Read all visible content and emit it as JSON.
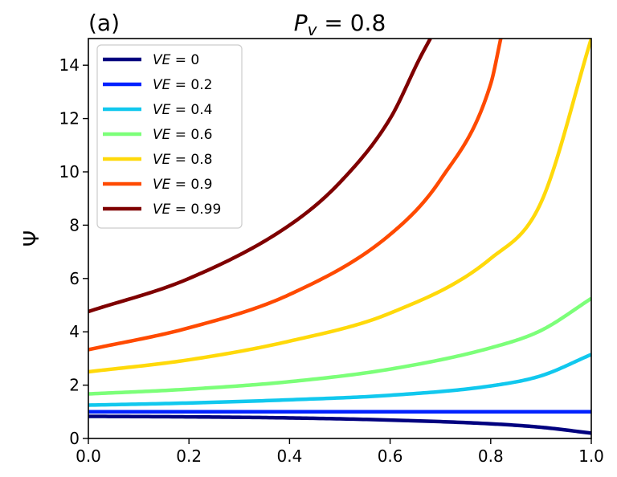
{
  "chart_data": {
    "type": "line",
    "panel_label": "(a)",
    "title": "P_v = 0.8",
    "title_main": "P",
    "title_sub": "v",
    "title_rest": " = 0.8",
    "ylabel": "Ψ",
    "xlabel": "",
    "xlim": [
      0.0,
      1.0
    ],
    "ylim": [
      0,
      15
    ],
    "x_ticks": [
      "0.0",
      "0.2",
      "0.4",
      "0.6",
      "0.8",
      "1.0"
    ],
    "y_ticks": [
      "0",
      "2",
      "4",
      "6",
      "8",
      "10",
      "12",
      "14"
    ],
    "grid": false,
    "legend_position": "upper-left",
    "series": [
      {
        "name": "VE = 0",
        "label_var": "VE",
        "label_val": " = 0",
        "color": "#00007f",
        "v": 0,
        "points": [
          [
            0.0,
            0.83
          ],
          [
            0.2,
            0.81
          ],
          [
            0.4,
            0.77
          ],
          [
            0.6,
            0.69
          ],
          [
            0.8,
            0.55
          ],
          [
            0.9,
            0.42
          ],
          [
            1.0,
            0.2
          ]
        ]
      },
      {
        "name": "VE = 0.2",
        "label_var": "VE",
        "label_val": " = 0.2",
        "color": "#0022ff",
        "v": 0.2,
        "points": [
          [
            0.0,
            1.0
          ],
          [
            0.5,
            1.0
          ],
          [
            1.0,
            1.0
          ]
        ]
      },
      {
        "name": "VE = 0.4",
        "label_var": "VE",
        "label_val": " = 0.4",
        "color": "#11c8ee",
        "v": 0.4,
        "points": [
          [
            0.0,
            1.25
          ],
          [
            0.2,
            1.33
          ],
          [
            0.4,
            1.45
          ],
          [
            0.6,
            1.62
          ],
          [
            0.8,
            1.97
          ],
          [
            0.9,
            2.35
          ],
          [
            1.0,
            3.15
          ]
        ]
      },
      {
        "name": "VE = 0.6",
        "label_var": "VE",
        "label_val": " = 0.6",
        "color": "#7cff79",
        "v": 0.6,
        "points": [
          [
            0.0,
            1.67
          ],
          [
            0.2,
            1.85
          ],
          [
            0.4,
            2.13
          ],
          [
            0.6,
            2.6
          ],
          [
            0.8,
            3.4
          ],
          [
            0.9,
            4.05
          ],
          [
            1.0,
            5.25
          ]
        ]
      },
      {
        "name": "VE = 0.8",
        "label_var": "VE",
        "label_val": " = 0.8",
        "color": "#ffd90a",
        "v": 0.8,
        "points": [
          [
            0.0,
            2.5
          ],
          [
            0.2,
            2.95
          ],
          [
            0.4,
            3.65
          ],
          [
            0.6,
            4.7
          ],
          [
            0.8,
            6.75
          ],
          [
            0.9,
            8.85
          ],
          [
            1.0,
            15.0
          ]
        ]
      },
      {
        "name": "VE = 0.9",
        "label_var": "VE",
        "label_val": " = 0.9",
        "color": "#ff4a00",
        "v": 0.9,
        "points": [
          [
            0.0,
            3.33
          ],
          [
            0.2,
            4.15
          ],
          [
            0.4,
            5.4
          ],
          [
            0.6,
            7.65
          ],
          [
            0.7,
            9.7
          ],
          [
            0.8,
            13.3
          ],
          [
            0.82,
            15.0
          ]
        ]
      },
      {
        "name": "VE = 0.99",
        "label_var": "VE",
        "label_val": " = 0.99",
        "color": "#7f0000",
        "v": 0.99,
        "points": [
          [
            0.0,
            4.76
          ],
          [
            0.2,
            6.0
          ],
          [
            0.4,
            8.0
          ],
          [
            0.5,
            9.6
          ],
          [
            0.6,
            12.0
          ],
          [
            0.66,
            14.3
          ],
          [
            0.68,
            15.0
          ]
        ]
      }
    ]
  }
}
